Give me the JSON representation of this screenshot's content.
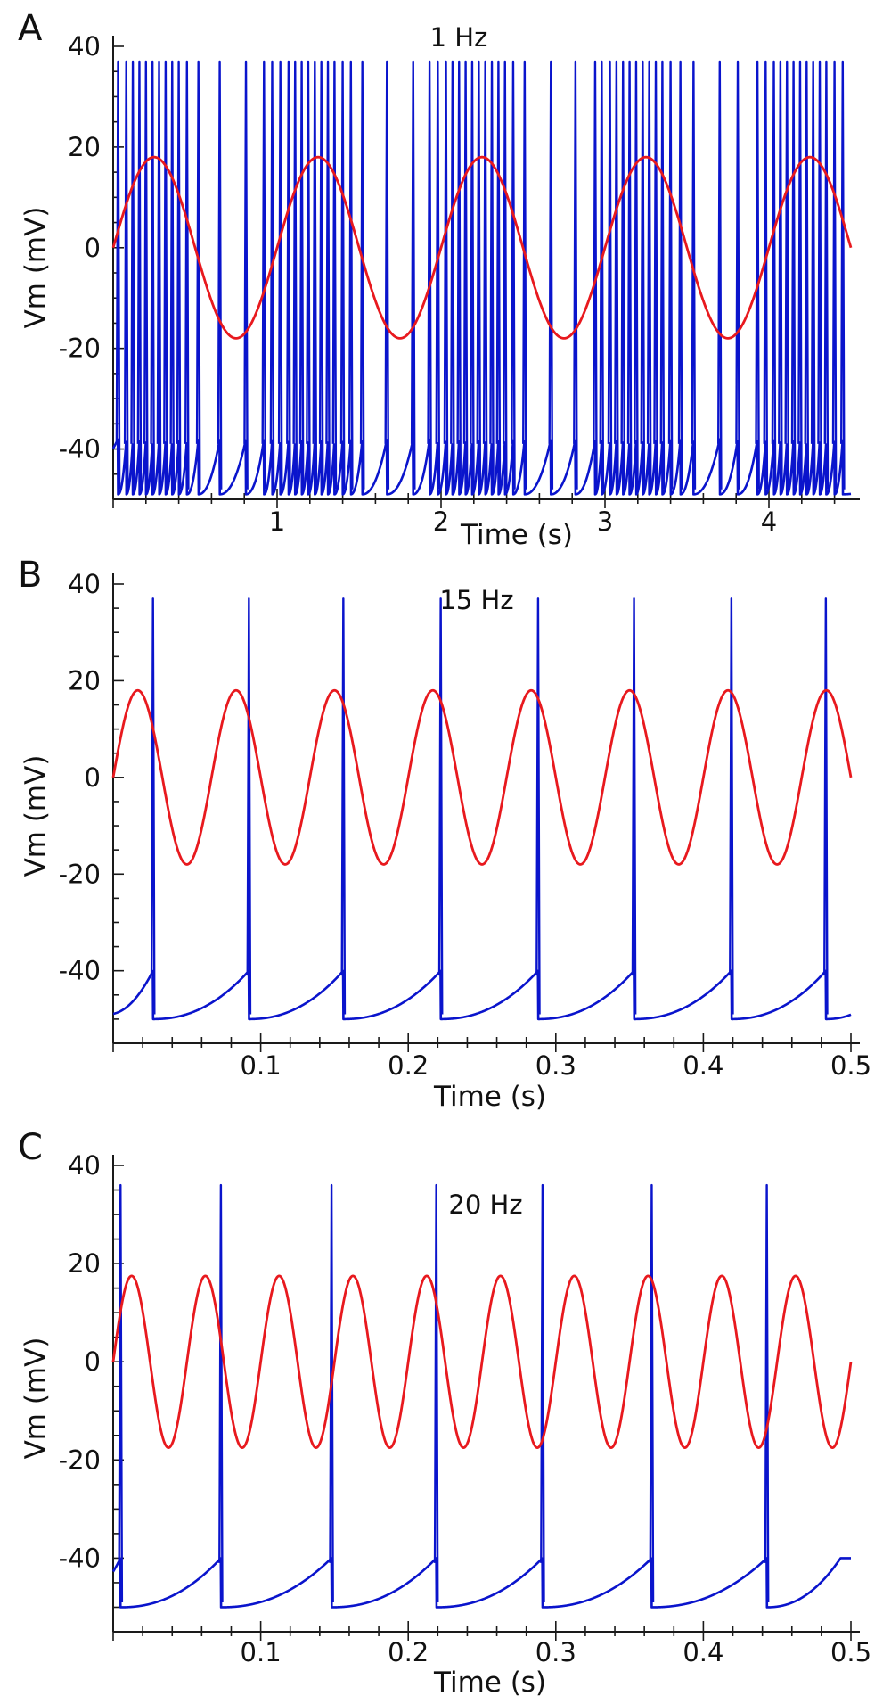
{
  "colors": {
    "membrane": "#0a14cc",
    "stimulus": "#e8191e",
    "axis": "#1a1a1a"
  },
  "chart_data": [
    {
      "type": "line",
      "panel": "A",
      "title": "1 Hz",
      "xlabel": "Time (s)",
      "ylabel": "Vm (mV)",
      "xlim": [
        0,
        4.5
      ],
      "ylim": [
        -50,
        40
      ],
      "xticks": [
        1,
        2,
        3,
        4
      ],
      "yticks": [
        40,
        20,
        0,
        -20,
        -40
      ],
      "grid": false,
      "legend": "none",
      "stimulus": {
        "frequency_hz": 1,
        "amplitude_mv": 18,
        "offset_mv": 0
      },
      "trace": {
        "baseline_mv": -45,
        "trough_mv": -49,
        "peak_mv": 37,
        "spike_times_s": [
          0.03,
          0.08,
          0.12,
          0.16,
          0.2,
          0.24,
          0.28,
          0.32,
          0.36,
          0.4,
          0.45,
          0.52,
          0.65,
          0.81,
          0.92,
          0.97,
          1.02,
          1.07,
          1.11,
          1.15,
          1.19,
          1.23,
          1.27,
          1.31,
          1.35,
          1.4,
          1.45,
          1.52,
          1.67,
          1.83,
          1.93,
          1.98,
          2.03,
          2.07,
          2.11,
          2.15,
          2.19,
          2.23,
          2.27,
          2.31,
          2.35,
          2.39,
          2.44,
          2.51,
          2.67,
          2.82,
          2.94,
          2.98,
          3.03,
          3.07,
          3.11,
          3.15,
          3.19,
          3.23,
          3.27,
          3.31,
          3.35,
          3.4,
          3.46,
          3.54,
          3.7,
          3.81,
          3.93,
          3.98,
          4.03,
          4.07,
          4.11,
          4.15,
          4.19,
          4.23,
          4.27,
          4.31,
          4.35,
          4.4,
          4.45
        ]
      }
    },
    {
      "type": "line",
      "panel": "B",
      "title": "15 Hz",
      "xlabel": "Time (s)",
      "ylabel": "Vm (mV)",
      "xlim": [
        0,
        0.5
      ],
      "ylim": [
        -55,
        40
      ],
      "xticks": [
        0.1,
        0.2,
        0.3,
        0.4,
        0.5
      ],
      "yticks": [
        40,
        20,
        0,
        -20,
        -40
      ],
      "grid": false,
      "legend": "none",
      "stimulus": {
        "frequency_hz": 15,
        "amplitude_mv": 18,
        "offset_mv": 0
      },
      "trace": {
        "baseline_mv": -47,
        "trough_mv": -50,
        "peak_mv": 37,
        "spike_times_s": [
          0.027,
          0.092,
          0.156,
          0.222,
          0.288,
          0.353,
          0.419,
          0.483
        ]
      }
    },
    {
      "type": "line",
      "panel": "C",
      "title": "20 Hz",
      "xlabel": "Time (s)",
      "ylabel": "Vm (mV)",
      "xlim": [
        0,
        0.5
      ],
      "ylim": [
        -55,
        40
      ],
      "xticks": [
        0.1,
        0.2,
        0.3,
        0.4,
        0.5
      ],
      "yticks": [
        40,
        20,
        0,
        -20,
        -40
      ],
      "grid": false,
      "legend": "none",
      "stimulus": {
        "frequency_hz": 20,
        "amplitude_mv": 17.5,
        "offset_mv": 0
      },
      "trace": {
        "baseline_mv": -47,
        "trough_mv": -50,
        "peak_mv": 36,
        "spike_times_s": [
          0.005,
          0.073,
          0.148,
          0.219,
          0.291,
          0.365,
          0.443
        ]
      }
    }
  ]
}
